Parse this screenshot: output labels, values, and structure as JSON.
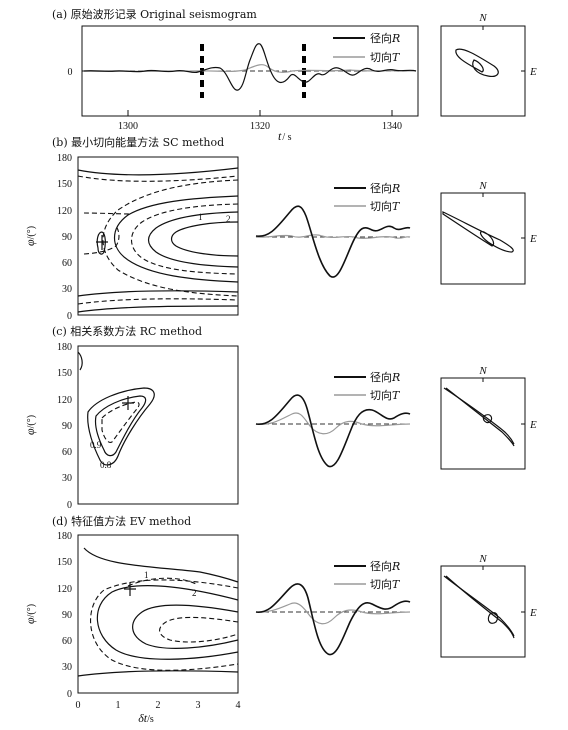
{
  "panels": {
    "a": {
      "title": "(a) 原始波形记录 Original seismogram",
      "xticks": [
        "1300",
        "1320",
        "1340"
      ],
      "yticks": [
        "0"
      ],
      "xlabel_var": "t",
      "xlabel_unit": "/ s"
    },
    "b": {
      "title": "(b) 最小切向能量方法 SC method",
      "contour_labels": [
        "1",
        "2"
      ]
    },
    "c": {
      "title": "(c) 相关系数方法 RC method",
      "contour_labels": [
        "0.9",
        "0.8"
      ]
    },
    "d": {
      "title": "(d) 特征值方法 EV method",
      "contour_labels": [
        "1",
        "2"
      ]
    }
  },
  "contour_axes": {
    "ylabel_var": "φ",
    "ylabel_unit": "/(°)",
    "yticks": [
      "180",
      "150",
      "120",
      "90",
      "60",
      "30",
      "0"
    ],
    "xticks": [
      "0",
      "1",
      "2",
      "3",
      "4"
    ],
    "xlabel_var": "δt",
    "xlabel_unit": "/s"
  },
  "legend": {
    "radial": "径向",
    "radial_sym": "R",
    "transverse": "切向",
    "transverse_sym": "T"
  },
  "compass": {
    "north": "N",
    "east": "E"
  },
  "colors": {
    "radial": "#111111",
    "transverse": "#9a9a9a"
  }
}
